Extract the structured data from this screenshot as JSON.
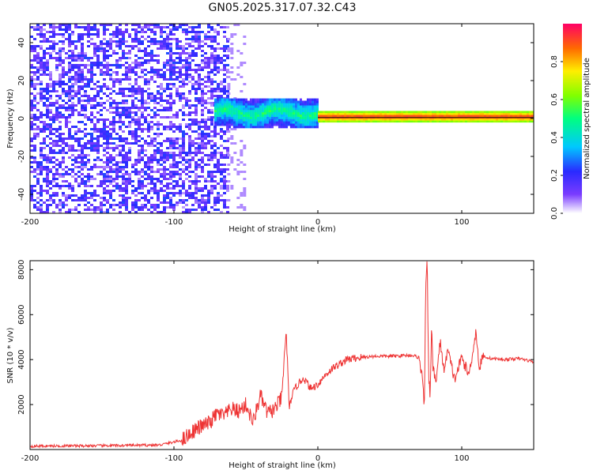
{
  "title": "GN05.2025.317.07.32.C43",
  "chart_data": [
    {
      "type": "heatmap",
      "xlabel": "Height of straight line (km)",
      "ylabel": "Frequency (Hz)",
      "xlim": [
        -200,
        150
      ],
      "ylim": [
        -50,
        50
      ],
      "x_ticks": [
        -200,
        -100,
        0,
        100
      ],
      "y_ticks": [
        -40,
        -20,
        0,
        20,
        40
      ],
      "colorbar": {
        "label": "Normalized spectral amplitude",
        "range": [
          0,
          1
        ],
        "ticks": [
          0.0,
          0.2,
          0.4,
          0.6,
          0.8
        ]
      },
      "regions": [
        {
          "x_range": [
            -200,
            -63
          ],
          "freq_band": [
            -50,
            50
          ],
          "amplitude": [
            0.05,
            0.25
          ],
          "pattern": "noise"
        },
        {
          "x_range": [
            -72,
            0
          ],
          "freq_band": [
            -5,
            10
          ],
          "amplitude": [
            0.2,
            0.5
          ],
          "pattern": "wavy-band"
        },
        {
          "x_range": [
            0,
            150
          ],
          "freq_band": [
            -2,
            3
          ],
          "amplitude": [
            0.6,
            0.95
          ],
          "pattern": "flat-line"
        }
      ]
    },
    {
      "type": "line",
      "xlabel": "Height of straight line (km)",
      "ylabel": "SNR (10 * v/v)",
      "xlim": [
        -200,
        150
      ],
      "ylim": [
        0,
        8400
      ],
      "x_ticks": [
        -200,
        -100,
        0,
        100
      ],
      "y_ticks": [
        2000,
        4000,
        6000,
        8000
      ],
      "color": "#ee3333",
      "series": [
        {
          "x": [
            -200,
            -150,
            -110,
            -95,
            -85,
            -75,
            -70,
            -65,
            -60,
            -55,
            -50,
            -45,
            -40,
            -35,
            -30,
            -25,
            -22,
            -20,
            -18,
            -15,
            -10,
            -5,
            0,
            5,
            10,
            15,
            20,
            25,
            30,
            40,
            50,
            60,
            65,
            70,
            72,
            74,
            75,
            76,
            77,
            78,
            79,
            80,
            82,
            85,
            88,
            90,
            95,
            100,
            105,
            110,
            112,
            115,
            120,
            130,
            140,
            150
          ],
          "y": [
            150,
            170,
            200,
            400,
            900,
            1200,
            1600,
            1500,
            1800,
            1700,
            2000,
            1200,
            2400,
            1600,
            1800,
            2300,
            5400,
            1800,
            2400,
            2800,
            3200,
            2700,
            2900,
            3300,
            3600,
            3800,
            4000,
            4050,
            4100,
            4150,
            4150,
            4180,
            4200,
            4100,
            3500,
            2000,
            7200,
            8350,
            3200,
            2400,
            5500,
            3600,
            3000,
            4800,
            3400,
            4500,
            3100,
            4100,
            3300,
            5300,
            3600,
            4150,
            4050,
            4000,
            4050,
            3900
          ]
        }
      ]
    }
  ]
}
